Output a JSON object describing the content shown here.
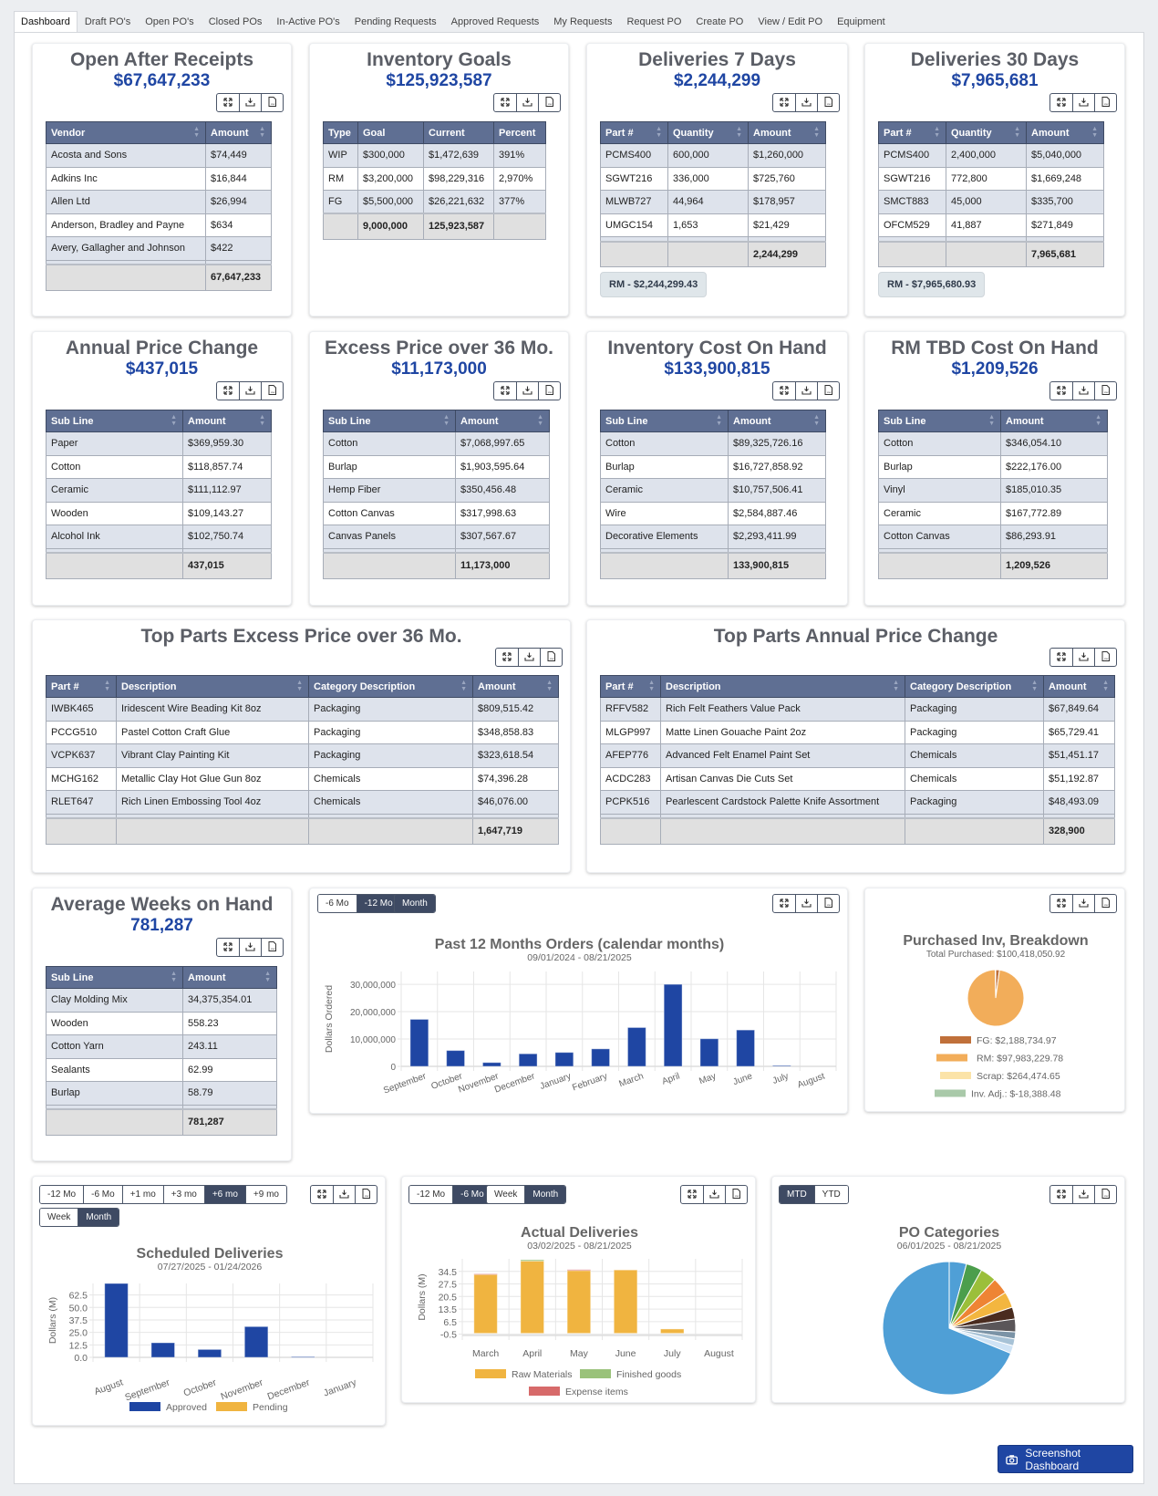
{
  "tabs": [
    {
      "label": "Dashboard",
      "active": true
    },
    {
      "label": "Draft PO's"
    },
    {
      "label": "Open PO's"
    },
    {
      "label": "Closed POs"
    },
    {
      "label": "In-Active PO's"
    },
    {
      "label": "Pending Requests"
    },
    {
      "label": "Approved Requests"
    },
    {
      "label": "My Requests"
    },
    {
      "label": "Request PO"
    },
    {
      "label": "Create PO"
    },
    {
      "label": "View / Edit PO"
    },
    {
      "label": "Equipment"
    }
  ],
  "toolbar_icons": [
    "expand-icon",
    "download-icon",
    "csv-file-icon"
  ],
  "colors": {
    "header": "#5f6f93",
    "accent_blue": "#1f46a3",
    "approved": "#1f46a3",
    "pending": "#f0b440",
    "raw_materials": "#f0b440",
    "finished_goods": "#9ac27a",
    "expense_items": "#d76a6a"
  },
  "table_cards": [
    {
      "title": "Open After Receipts",
      "value": "$67,647,233",
      "columns": [
        "Vendor",
        "Amount"
      ],
      "sortable": true,
      "rows": [
        [
          "Acosta and Sons",
          "$74,449"
        ],
        [
          "Adkins Inc",
          "$16,844"
        ],
        [
          "Allen Ltd",
          "$26,994"
        ],
        [
          "Anderson, Bradley and Payne",
          "$634"
        ],
        [
          "Avery, Gallagher and Johnson",
          "$422"
        ]
      ],
      "footer": [
        "",
        "67,647,233"
      ]
    },
    {
      "title": "Inventory Goals",
      "value": "$125,923,587",
      "columns": [
        "Type",
        "Goal",
        "Current",
        "Percent"
      ],
      "sortable": false,
      "rows": [
        [
          "WIP",
          "$300,000",
          "$1,472,639",
          "391%"
        ],
        [
          "RM",
          "$3,200,000",
          "$98,229,316",
          "2,970%"
        ],
        [
          "FG",
          "$5,500,000",
          "$26,221,632",
          "377%"
        ]
      ],
      "footer": [
        "",
        "9,000,000",
        "125,923,587",
        ""
      ]
    },
    {
      "title": "Deliveries 7 Days",
      "value": "$2,244,299",
      "columns": [
        "Part #",
        "Quantity",
        "Amount"
      ],
      "sortable": true,
      "rows": [
        [
          "PCMS400",
          "600,000",
          "$1,260,000"
        ],
        [
          "SGWT216",
          "336,000",
          "$725,760"
        ],
        [
          "MLWB727",
          "44,964",
          "$178,957"
        ],
        [
          "UMGC154",
          "1,653",
          "$21,429"
        ]
      ],
      "footer": [
        "",
        "",
        "2,244,299"
      ],
      "badge": "RM - $2,244,299.43"
    },
    {
      "title": "Deliveries 30 Days",
      "value": "$7,965,681",
      "columns": [
        "Part #",
        "Quantity",
        "Amount"
      ],
      "sortable": true,
      "rows": [
        [
          "PCMS400",
          "2,400,000",
          "$5,040,000"
        ],
        [
          "SGWT216",
          "772,800",
          "$1,669,248"
        ],
        [
          "SMCT883",
          "45,000",
          "$335,700"
        ],
        [
          "OFCM529",
          "41,887",
          "$271,849"
        ]
      ],
      "footer": [
        "",
        "",
        "7,965,681"
      ],
      "badge": "RM - $7,965,680.93"
    },
    {
      "title": "Annual Price Change",
      "value": "$437,015",
      "columns": [
        "Sub Line",
        "Amount"
      ],
      "sortable": true,
      "rows": [
        [
          "Paper",
          "$369,959.30"
        ],
        [
          "Cotton",
          "$118,857.74"
        ],
        [
          "Ceramic",
          "$111,112.97"
        ],
        [
          "Wooden",
          "$109,143.27"
        ],
        [
          "Alcohol Ink",
          "$102,750.74"
        ]
      ],
      "footer": [
        "",
        "437,015"
      ]
    },
    {
      "title": "Excess Price over 36 Mo.",
      "value": "$11,173,000",
      "columns": [
        "Sub Line",
        "Amount"
      ],
      "sortable": true,
      "rows": [
        [
          "Cotton",
          "$7,068,997.65"
        ],
        [
          "Burlap",
          "$1,903,595.64"
        ],
        [
          "Hemp Fiber",
          "$350,456.48"
        ],
        [
          "Cotton Canvas",
          "$317,998.63"
        ],
        [
          "Canvas Panels",
          "$307,567.67"
        ]
      ],
      "footer": [
        "",
        "11,173,000"
      ]
    },
    {
      "title": "Inventory Cost On Hand",
      "value": "$133,900,815",
      "columns": [
        "Sub Line",
        "Amount"
      ],
      "sortable": true,
      "rows": [
        [
          "Cotton",
          "$89,325,726.16"
        ],
        [
          "Burlap",
          "$16,727,858.92"
        ],
        [
          "Ceramic",
          "$10,757,506.41"
        ],
        [
          "Wire",
          "$2,584,887.46"
        ],
        [
          "Decorative Elements",
          "$2,293,411.99"
        ]
      ],
      "footer": [
        "",
        "133,900,815"
      ]
    },
    {
      "title": "RM TBD Cost On Hand",
      "value": "$1,209,526",
      "columns": [
        "Sub Line",
        "Amount"
      ],
      "sortable": true,
      "rows": [
        [
          "Cotton",
          "$346,054.10"
        ],
        [
          "Burlap",
          "$222,176.00"
        ],
        [
          "Vinyl",
          "$185,010.35"
        ],
        [
          "Ceramic",
          "$167,772.89"
        ],
        [
          "Cotton Canvas",
          "$86,293.91"
        ]
      ],
      "footer": [
        "",
        "1,209,526"
      ]
    },
    {
      "title": "Top Parts Excess Price over 36 Mo.",
      "value": "",
      "columns": [
        "Part #",
        "Description",
        "Category Description",
        "Amount"
      ],
      "sortable": true,
      "rows": [
        [
          "IWBK465",
          "Iridescent Wire Beading Kit 8oz",
          "Packaging",
          "$809,515.42"
        ],
        [
          "PCCG510",
          "Pastel Cotton Craft Glue",
          "Packaging",
          "$348,858.83"
        ],
        [
          "VCPK637",
          "Vibrant Clay Painting Kit",
          "Packaging",
          "$323,618.54"
        ],
        [
          "MCHG162",
          "Metallic Clay Hot Glue Gun 8oz",
          "Chemicals",
          "$74,396.28"
        ],
        [
          "RLET647",
          "Rich Linen Embossing Tool 4oz",
          "Chemicals",
          "$46,076.00"
        ]
      ],
      "footer": [
        "",
        "",
        "",
        "1,647,719"
      ]
    },
    {
      "title": "Top Parts Annual Price Change",
      "value": "",
      "columns": [
        "Part #",
        "Description",
        "Category Description",
        "Amount"
      ],
      "sortable": true,
      "rows": [
        [
          "RFFV582",
          "Rich Felt Feathers Value Pack",
          "Packaging",
          "$67,849.64"
        ],
        [
          "MLGP997",
          "Matte Linen Gouache Paint 2oz",
          "Packaging",
          "$65,729.41"
        ],
        [
          "AFEP776",
          "Advanced Felt Enamel Paint Set",
          "Chemicals",
          "$51,451.17"
        ],
        [
          "ACDC283",
          "Artisan Canvas Die Cuts Set",
          "Chemicals",
          "$51,192.87"
        ],
        [
          "PCPK516",
          "Pearlescent Cardstock Palette Knife Assortment",
          "Packaging",
          "$48,493.09"
        ]
      ],
      "footer": [
        "",
        "",
        "",
        "328,900"
      ]
    },
    {
      "title": "Average Weeks on Hand",
      "value": "781,287",
      "columns": [
        "Sub Line",
        "Amount"
      ],
      "sortable": true,
      "rows": [
        [
          "Clay Molding Mix",
          "34,375,354.01"
        ],
        [
          "Wooden",
          "558.23"
        ],
        [
          "Cotton Yarn",
          "243.11"
        ],
        [
          "Sealants",
          "62.99"
        ],
        [
          "Burlap",
          "58.79"
        ]
      ],
      "footer": [
        "",
        "781,287"
      ]
    }
  ],
  "past12": {
    "buttons": [
      {
        "label": "-6 Mo"
      },
      {
        "label": "-12 Mo",
        "active": true
      }
    ],
    "buttons2": [
      {
        "label": "Month",
        "active": true
      }
    ]
  },
  "scheduled": {
    "buttons": [
      {
        "label": "-12 Mo"
      },
      {
        "label": "-6 Mo"
      },
      {
        "label": "+1 mo"
      },
      {
        "label": "+3 mo"
      },
      {
        "label": "+6 mo",
        "active": true
      },
      {
        "label": "+9 mo"
      }
    ],
    "buttons2": [
      {
        "label": "Week"
      },
      {
        "label": "Month",
        "active": true
      }
    ]
  },
  "actual": {
    "buttons": [
      {
        "label": "-12 Mo"
      },
      {
        "label": "-6 Mo",
        "active": true
      }
    ],
    "buttons2": [
      {
        "label": "Week"
      },
      {
        "label": "Month",
        "active": true
      }
    ]
  },
  "po_categories": {
    "buttons": [
      {
        "label": "MTD",
        "active": true
      },
      {
        "label": "YTD"
      }
    ]
  },
  "screenshot_button": {
    "label": "Screenshot Dashboard",
    "icon": "camera-icon"
  },
  "chart_data": [
    {
      "type": "bar",
      "title": "Past 12 Months Orders (calendar months)",
      "subtitle": "09/01/2024 - 08/21/2025",
      "ylabel": "Dollars Ordered",
      "xlabel": "",
      "categories": [
        "September",
        "October",
        "November",
        "December",
        "January",
        "February",
        "March",
        "April",
        "May",
        "June",
        "July",
        "August"
      ],
      "values": [
        17200000,
        5800000,
        1400000,
        4600000,
        5100000,
        6400000,
        14200000,
        30000000,
        10100000,
        13300000,
        300000,
        0
      ],
      "yticks": [
        "0",
        "10,000,000",
        "20,000,000",
        "30,000,000"
      ],
      "ytick_values": [
        0,
        10000000,
        20000000,
        30000000
      ],
      "ylim": [
        0,
        34700000
      ],
      "grid": true,
      "color": "#1f46a3"
    },
    {
      "type": "pie",
      "title": "Purchased Inv, Breakdown",
      "subtitle": "Total Purchased: $100,418,050.92",
      "legend": "bottom",
      "slices": [
        {
          "label": "FG: $2,188,734.97",
          "value": 2188734.97,
          "color": "#c0703a"
        },
        {
          "label": "RM: $97,983,229.78",
          "value": 97983229.78,
          "color": "#f2ad5a"
        },
        {
          "label": "Scrap: $264,474.65",
          "value": 264474.65,
          "color": "#fbe3a8"
        },
        {
          "label": "Inv. Adj.: $-18,388.48",
          "value": -18388.48,
          "color": "#a9c9a9"
        }
      ]
    },
    {
      "type": "bar",
      "title": "Scheduled Deliveries",
      "subtitle": "07/27/2025 - 01/24/2026",
      "ylabel": "Dollars (M)",
      "legend": "bottom",
      "categories": [
        "August",
        "September",
        "October",
        "November",
        "December",
        "January"
      ],
      "series": [
        {
          "name": "Approved",
          "values": [
            74,
            14.6,
            7.9,
            30.8,
            0.6,
            0
          ],
          "color": "#1f46a3"
        },
        {
          "name": "Pending",
          "values": [
            0,
            0,
            0,
            0,
            0,
            0
          ],
          "color": "#f0b440"
        }
      ],
      "yticks": [
        "0.0",
        "12.5",
        "25.0",
        "37.5",
        "50.0",
        "62.5"
      ],
      "ytick_values": [
        0,
        12.5,
        25,
        37.5,
        50,
        62.5
      ],
      "ylim": [
        0,
        74
      ],
      "grid": true
    },
    {
      "type": "bar",
      "stacked": true,
      "title": "Actual Deliveries",
      "subtitle": "03/02/2025 - 08/21/2025",
      "ylabel": "Dollars (M)",
      "legend": "bottom",
      "categories": [
        "March",
        "April",
        "May",
        "June",
        "July",
        "August"
      ],
      "series": [
        {
          "name": "Raw Materials",
          "values": [
            32.9,
            40.3,
            35.0,
            35.3,
            2.4,
            0
          ],
          "color": "#f0b440"
        },
        {
          "name": "Finished goods",
          "values": [
            0,
            0.7,
            0,
            0,
            0,
            0
          ],
          "color": "#9ac27a"
        },
        {
          "name": "Expense items",
          "values": [
            0.2,
            0,
            0.5,
            0,
            0,
            0
          ],
          "color": "#d76a6a"
        }
      ],
      "yticks": [
        "-0.5",
        "6.5",
        "13.5",
        "20.5",
        "27.5",
        "34.5"
      ],
      "ytick_values": [
        -0.5,
        6.5,
        13.5,
        20.5,
        27.5,
        34.5
      ],
      "ylim": [
        -1.2,
        41.5
      ],
      "grid": true
    },
    {
      "type": "pie",
      "title": "PO Categories",
      "subtitle": "06/01/2025 - 08/21/2025",
      "slices": [
        {
          "value": 4.2,
          "color": "#4f9fd6"
        },
        {
          "value": 3.9,
          "color": "#4c9e4c"
        },
        {
          "value": 3.9,
          "color": "#9bbf3a"
        },
        {
          "value": 4.0,
          "color": "#ee8434"
        },
        {
          "value": 3.9,
          "color": "#f3b63f"
        },
        {
          "value": 2.9,
          "color": "#4a2c1f"
        },
        {
          "value": 3.1,
          "color": "#5a5659"
        },
        {
          "value": 1.7,
          "color": "#7b93a6"
        },
        {
          "value": 1.7,
          "color": "#a7c2d6"
        },
        {
          "value": 1.9,
          "color": "#cfe3f5"
        },
        {
          "value": 68.8,
          "color": "#4f9fd6"
        }
      ]
    }
  ]
}
